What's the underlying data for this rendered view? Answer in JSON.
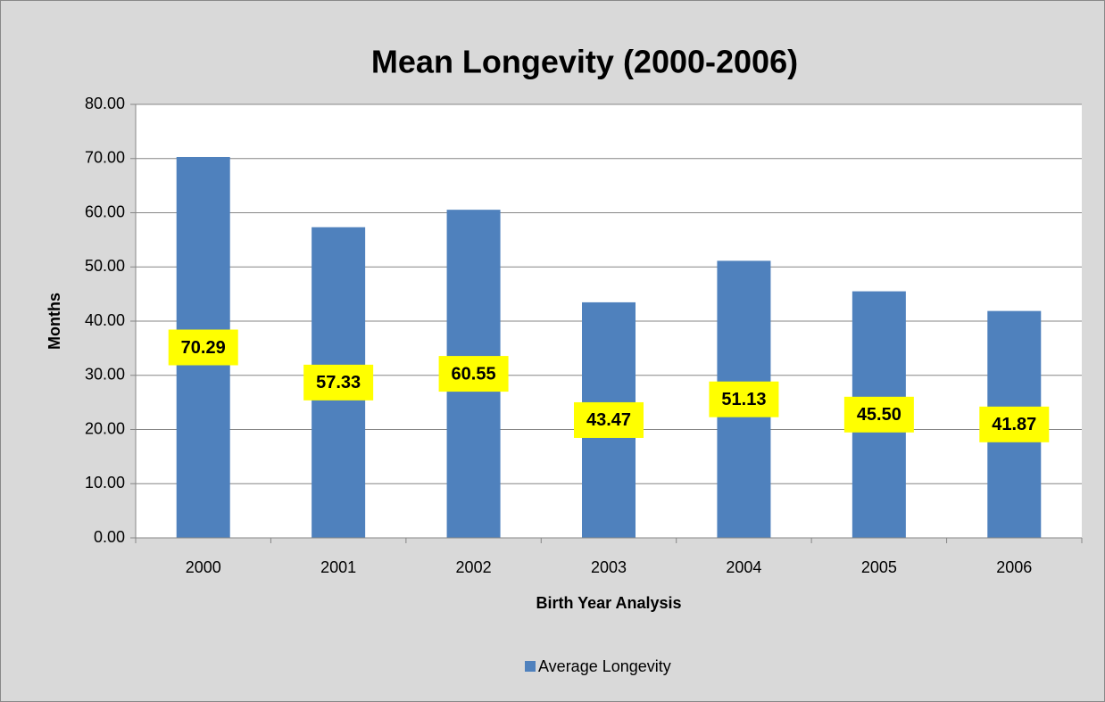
{
  "chart_data": {
    "type": "bar",
    "title": "Mean Longevity (2000-2006)",
    "x_label": "Birth Year Analysis",
    "y_label": "Months",
    "categories": [
      "2000",
      "2001",
      "2002",
      "2003",
      "2004",
      "2005",
      "2006"
    ],
    "series": [
      {
        "name": "Average Longevity",
        "color": "#4f81bd",
        "values": [
          70.29,
          57.33,
          60.55,
          43.47,
          51.13,
          45.5,
          41.87
        ],
        "value_labels": [
          "70.29",
          "57.33",
          "60.55",
          "43.47",
          "51.13",
          "45.50",
          "41.87"
        ]
      }
    ],
    "ylim": [
      0,
      80
    ],
    "yticks": [
      {
        "value": 0,
        "label": "0.00"
      },
      {
        "value": 10,
        "label": "10.00"
      },
      {
        "value": 20,
        "label": "20.00"
      },
      {
        "value": 30,
        "label": "30.00"
      },
      {
        "value": 40,
        "label": "40.00"
      },
      {
        "value": 50,
        "label": "50.00"
      },
      {
        "value": 60,
        "label": "60.00"
      },
      {
        "value": 70,
        "label": "70.00"
      },
      {
        "value": 80,
        "label": "80.00"
      }
    ],
    "grid": true,
    "legend": "bottom",
    "label_color": "#ffff00"
  }
}
